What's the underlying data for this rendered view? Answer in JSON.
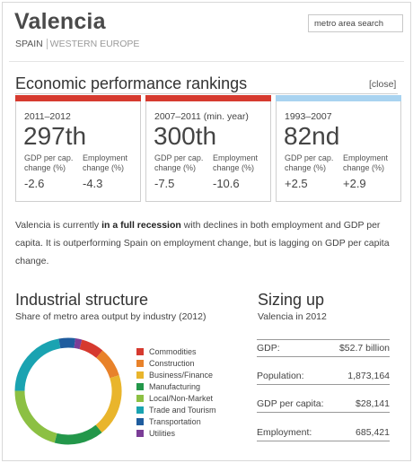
{
  "header": {
    "city": "Valencia",
    "country": "SPAIN",
    "region": "WESTERN EUROPE",
    "search_placeholder": "metro area search"
  },
  "rankings": {
    "title": "Economic performance rankings",
    "close_label": "[close]",
    "cards": [
      {
        "period": "2011–2012",
        "rank": "297th",
        "gdp_label": "GDP per cap. change (%)",
        "emp_label": "Employment change (%)",
        "gdp_value": "-2.6",
        "emp_value": "-4.3",
        "bar_color": "#d63a2f"
      },
      {
        "period": "2007–2011 (min. year)",
        "rank": "300th",
        "gdp_label": "GDP per cap. change (%)",
        "emp_label": "Employment change (%)",
        "gdp_value": "-7.5",
        "emp_value": "-10.6",
        "bar_color": "#d63a2f"
      },
      {
        "period": "1993–2007",
        "rank": "82nd",
        "gdp_label": "GDP per cap. change (%)",
        "emp_label": "Employment change (%)",
        "gdp_value": "+2.5",
        "emp_value": "+2.9",
        "bar_color": "#a9d3f0"
      }
    ],
    "description": {
      "pre": "Valencia is currently ",
      "bold": "in a full recession",
      "post": " with declines in both employment and GDP per capita. It is outperforming Spain on employment change, but is lagging on GDP per capita change."
    }
  },
  "industrial": {
    "title": "Industrial structure",
    "subtitle": "Share of metro area output by industry (2012)",
    "segments": [
      {
        "name": "Commodities",
        "share": 0.07,
        "color": "#d63a2f"
      },
      {
        "name": "Construction",
        "share": 0.09,
        "color": "#e8822a"
      },
      {
        "name": "Business/Finance",
        "share": 0.19,
        "color": "#e9b52c"
      },
      {
        "name": "Manufacturing",
        "share": 0.15,
        "color": "#23974a"
      },
      {
        "name": "Local/Non-Market",
        "share": 0.21,
        "color": "#8cc043"
      },
      {
        "name": "Trade and Tourism",
        "share": 0.22,
        "color": "#1aa3b1"
      },
      {
        "name": "Transportation",
        "share": 0.05,
        "color": "#1f5c9e"
      },
      {
        "name": "Utilities",
        "share": 0.02,
        "color": "#7b3d97"
      }
    ]
  },
  "sizing": {
    "title": "Sizing up",
    "subtitle": "Valencia in 2012",
    "rows": [
      {
        "label": "GDP:",
        "value": "$52.7 billion"
      },
      {
        "label": "Population:",
        "value": "1,873,164"
      },
      {
        "label": "GDP per capita:",
        "value": "$28,141"
      },
      {
        "label": "Employment:",
        "value": "685,421"
      }
    ]
  }
}
